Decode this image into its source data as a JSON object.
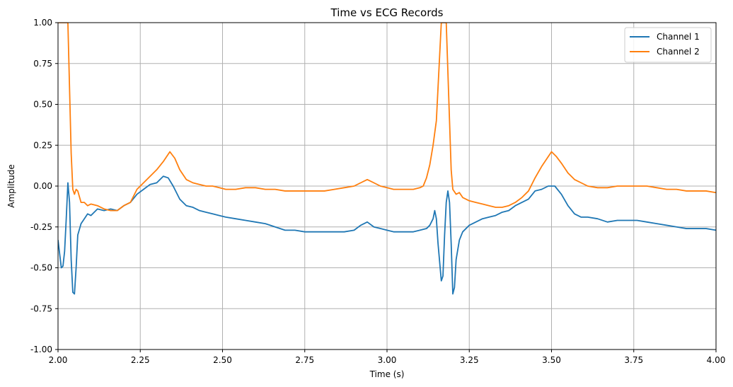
{
  "chart_data": {
    "type": "line",
    "title": "Time vs ECG Records",
    "xlabel": "Time (s)",
    "ylabel": "Amplitude",
    "xlim": [
      2.0,
      4.0
    ],
    "ylim": [
      -1.0,
      1.0
    ],
    "xticks": [
      "2.00",
      "2.25",
      "2.50",
      "2.75",
      "3.00",
      "3.25",
      "3.50",
      "3.75",
      "4.00"
    ],
    "yticks": [
      "-1.00",
      "-0.75",
      "-0.50",
      "-0.25",
      "0.00",
      "0.25",
      "0.50",
      "0.75",
      "1.00"
    ],
    "grid": true,
    "legend_position": "top-right",
    "series": [
      {
        "name": "Channel 1",
        "color": "#1f77b4",
        "points": [
          [
            2.0,
            -0.33
          ],
          [
            2.01,
            -0.5
          ],
          [
            2.015,
            -0.49
          ],
          [
            2.02,
            -0.4
          ],
          [
            2.025,
            -0.2
          ],
          [
            2.03,
            0.02
          ],
          [
            2.035,
            -0.1
          ],
          [
            2.04,
            -0.45
          ],
          [
            2.045,
            -0.65
          ],
          [
            2.05,
            -0.66
          ],
          [
            2.055,
            -0.5
          ],
          [
            2.06,
            -0.3
          ],
          [
            2.07,
            -0.23
          ],
          [
            2.08,
            -0.2
          ],
          [
            2.09,
            -0.17
          ],
          [
            2.1,
            -0.18
          ],
          [
            2.12,
            -0.14
          ],
          [
            2.14,
            -0.15
          ],
          [
            2.16,
            -0.14
          ],
          [
            2.18,
            -0.15
          ],
          [
            2.2,
            -0.12
          ],
          [
            2.22,
            -0.1
          ],
          [
            2.24,
            -0.05
          ],
          [
            2.26,
            -0.02
          ],
          [
            2.28,
            0.01
          ],
          [
            2.3,
            0.02
          ],
          [
            2.32,
            0.06
          ],
          [
            2.335,
            0.05
          ],
          [
            2.35,
            0.0
          ],
          [
            2.37,
            -0.08
          ],
          [
            2.39,
            -0.12
          ],
          [
            2.41,
            -0.13
          ],
          [
            2.43,
            -0.15
          ],
          [
            2.45,
            -0.16
          ],
          [
            2.47,
            -0.17
          ],
          [
            2.49,
            -0.18
          ],
          [
            2.51,
            -0.19
          ],
          [
            2.54,
            -0.2
          ],
          [
            2.57,
            -0.21
          ],
          [
            2.6,
            -0.22
          ],
          [
            2.63,
            -0.23
          ],
          [
            2.66,
            -0.25
          ],
          [
            2.69,
            -0.27
          ],
          [
            2.72,
            -0.27
          ],
          [
            2.75,
            -0.28
          ],
          [
            2.78,
            -0.28
          ],
          [
            2.81,
            -0.28
          ],
          [
            2.84,
            -0.28
          ],
          [
            2.87,
            -0.28
          ],
          [
            2.9,
            -0.27
          ],
          [
            2.92,
            -0.24
          ],
          [
            2.94,
            -0.22
          ],
          [
            2.96,
            -0.25
          ],
          [
            2.98,
            -0.26
          ],
          [
            3.0,
            -0.27
          ],
          [
            3.02,
            -0.28
          ],
          [
            3.05,
            -0.28
          ],
          [
            3.08,
            -0.28
          ],
          [
            3.1,
            -0.27
          ],
          [
            3.12,
            -0.26
          ],
          [
            3.13,
            -0.24
          ],
          [
            3.14,
            -0.2
          ],
          [
            3.145,
            -0.15
          ],
          [
            3.15,
            -0.2
          ],
          [
            3.155,
            -0.35
          ],
          [
            3.165,
            -0.58
          ],
          [
            3.17,
            -0.55
          ],
          [
            3.175,
            -0.3
          ],
          [
            3.18,
            -0.1
          ],
          [
            3.185,
            -0.03
          ],
          [
            3.19,
            -0.1
          ],
          [
            3.195,
            -0.35
          ],
          [
            3.2,
            -0.66
          ],
          [
            3.205,
            -0.62
          ],
          [
            3.21,
            -0.45
          ],
          [
            3.22,
            -0.33
          ],
          [
            3.23,
            -0.28
          ],
          [
            3.25,
            -0.24
          ],
          [
            3.27,
            -0.22
          ],
          [
            3.29,
            -0.2
          ],
          [
            3.31,
            -0.19
          ],
          [
            3.33,
            -0.18
          ],
          [
            3.35,
            -0.16
          ],
          [
            3.37,
            -0.15
          ],
          [
            3.39,
            -0.12
          ],
          [
            3.41,
            -0.1
          ],
          [
            3.43,
            -0.08
          ],
          [
            3.45,
            -0.03
          ],
          [
            3.47,
            -0.02
          ],
          [
            3.49,
            0.0
          ],
          [
            3.51,
            0.0
          ],
          [
            3.53,
            -0.05
          ],
          [
            3.55,
            -0.12
          ],
          [
            3.57,
            -0.17
          ],
          [
            3.59,
            -0.19
          ],
          [
            3.61,
            -0.19
          ],
          [
            3.64,
            -0.2
          ],
          [
            3.67,
            -0.22
          ],
          [
            3.7,
            -0.21
          ],
          [
            3.73,
            -0.21
          ],
          [
            3.76,
            -0.21
          ],
          [
            3.79,
            -0.22
          ],
          [
            3.82,
            -0.23
          ],
          [
            3.85,
            -0.24
          ],
          [
            3.88,
            -0.25
          ],
          [
            3.91,
            -0.26
          ],
          [
            3.94,
            -0.26
          ],
          [
            3.97,
            -0.26
          ],
          [
            4.0,
            -0.27
          ]
        ]
      },
      {
        "name": "Channel 2",
        "color": "#ff7f0e",
        "points": [
          [
            2.0,
            1.0
          ],
          [
            2.03,
            1.0
          ],
          [
            2.035,
            0.6
          ],
          [
            2.04,
            0.2
          ],
          [
            2.045,
            -0.02
          ],
          [
            2.05,
            -0.05
          ],
          [
            2.055,
            -0.02
          ],
          [
            2.06,
            -0.03
          ],
          [
            2.07,
            -0.1
          ],
          [
            2.08,
            -0.1
          ],
          [
            2.09,
            -0.12
          ],
          [
            2.1,
            -0.11
          ],
          [
            2.12,
            -0.12
          ],
          [
            2.14,
            -0.14
          ],
          [
            2.16,
            -0.15
          ],
          [
            2.18,
            -0.15
          ],
          [
            2.2,
            -0.12
          ],
          [
            2.22,
            -0.1
          ],
          [
            2.24,
            -0.02
          ],
          [
            2.26,
            0.02
          ],
          [
            2.28,
            0.06
          ],
          [
            2.3,
            0.1
          ],
          [
            2.32,
            0.15
          ],
          [
            2.34,
            0.21
          ],
          [
            2.355,
            0.17
          ],
          [
            2.37,
            0.1
          ],
          [
            2.39,
            0.04
          ],
          [
            2.41,
            0.02
          ],
          [
            2.43,
            0.01
          ],
          [
            2.45,
            0.0
          ],
          [
            2.47,
            0.0
          ],
          [
            2.49,
            -0.01
          ],
          [
            2.51,
            -0.02
          ],
          [
            2.54,
            -0.02
          ],
          [
            2.57,
            -0.01
          ],
          [
            2.6,
            -0.01
          ],
          [
            2.63,
            -0.02
          ],
          [
            2.66,
            -0.02
          ],
          [
            2.69,
            -0.03
          ],
          [
            2.72,
            -0.03
          ],
          [
            2.75,
            -0.03
          ],
          [
            2.78,
            -0.03
          ],
          [
            2.81,
            -0.03
          ],
          [
            2.84,
            -0.02
          ],
          [
            2.87,
            -0.01
          ],
          [
            2.9,
            0.0
          ],
          [
            2.92,
            0.02
          ],
          [
            2.94,
            0.04
          ],
          [
            2.96,
            0.02
          ],
          [
            2.98,
            0.0
          ],
          [
            3.0,
            -0.01
          ],
          [
            3.02,
            -0.02
          ],
          [
            3.04,
            -0.02
          ],
          [
            3.06,
            -0.02
          ],
          [
            3.08,
            -0.02
          ],
          [
            3.1,
            -0.01
          ],
          [
            3.11,
            0.0
          ],
          [
            3.12,
            0.05
          ],
          [
            3.13,
            0.13
          ],
          [
            3.14,
            0.25
          ],
          [
            3.15,
            0.4
          ],
          [
            3.155,
            0.6
          ],
          [
            3.16,
            0.8
          ],
          [
            3.165,
            1.0
          ],
          [
            3.18,
            1.0
          ],
          [
            3.185,
            0.7
          ],
          [
            3.19,
            0.4
          ],
          [
            3.195,
            0.1
          ],
          [
            3.2,
            -0.02
          ],
          [
            3.21,
            -0.05
          ],
          [
            3.22,
            -0.04
          ],
          [
            3.23,
            -0.07
          ],
          [
            3.25,
            -0.09
          ],
          [
            3.27,
            -0.1
          ],
          [
            3.29,
            -0.11
          ],
          [
            3.31,
            -0.12
          ],
          [
            3.33,
            -0.13
          ],
          [
            3.35,
            -0.13
          ],
          [
            3.37,
            -0.12
          ],
          [
            3.39,
            -0.1
          ],
          [
            3.41,
            -0.07
          ],
          [
            3.43,
            -0.03
          ],
          [
            3.45,
            0.05
          ],
          [
            3.47,
            0.12
          ],
          [
            3.49,
            0.18
          ],
          [
            3.5,
            0.21
          ],
          [
            3.515,
            0.18
          ],
          [
            3.53,
            0.14
          ],
          [
            3.55,
            0.08
          ],
          [
            3.57,
            0.04
          ],
          [
            3.59,
            0.02
          ],
          [
            3.61,
            0.0
          ],
          [
            3.64,
            -0.01
          ],
          [
            3.67,
            -0.01
          ],
          [
            3.7,
            0.0
          ],
          [
            3.73,
            0.0
          ],
          [
            3.76,
            0.0
          ],
          [
            3.79,
            0.0
          ],
          [
            3.82,
            -0.01
          ],
          [
            3.85,
            -0.02
          ],
          [
            3.88,
            -0.02
          ],
          [
            3.91,
            -0.03
          ],
          [
            3.94,
            -0.03
          ],
          [
            3.97,
            -0.03
          ],
          [
            4.0,
            -0.04
          ]
        ]
      }
    ]
  }
}
